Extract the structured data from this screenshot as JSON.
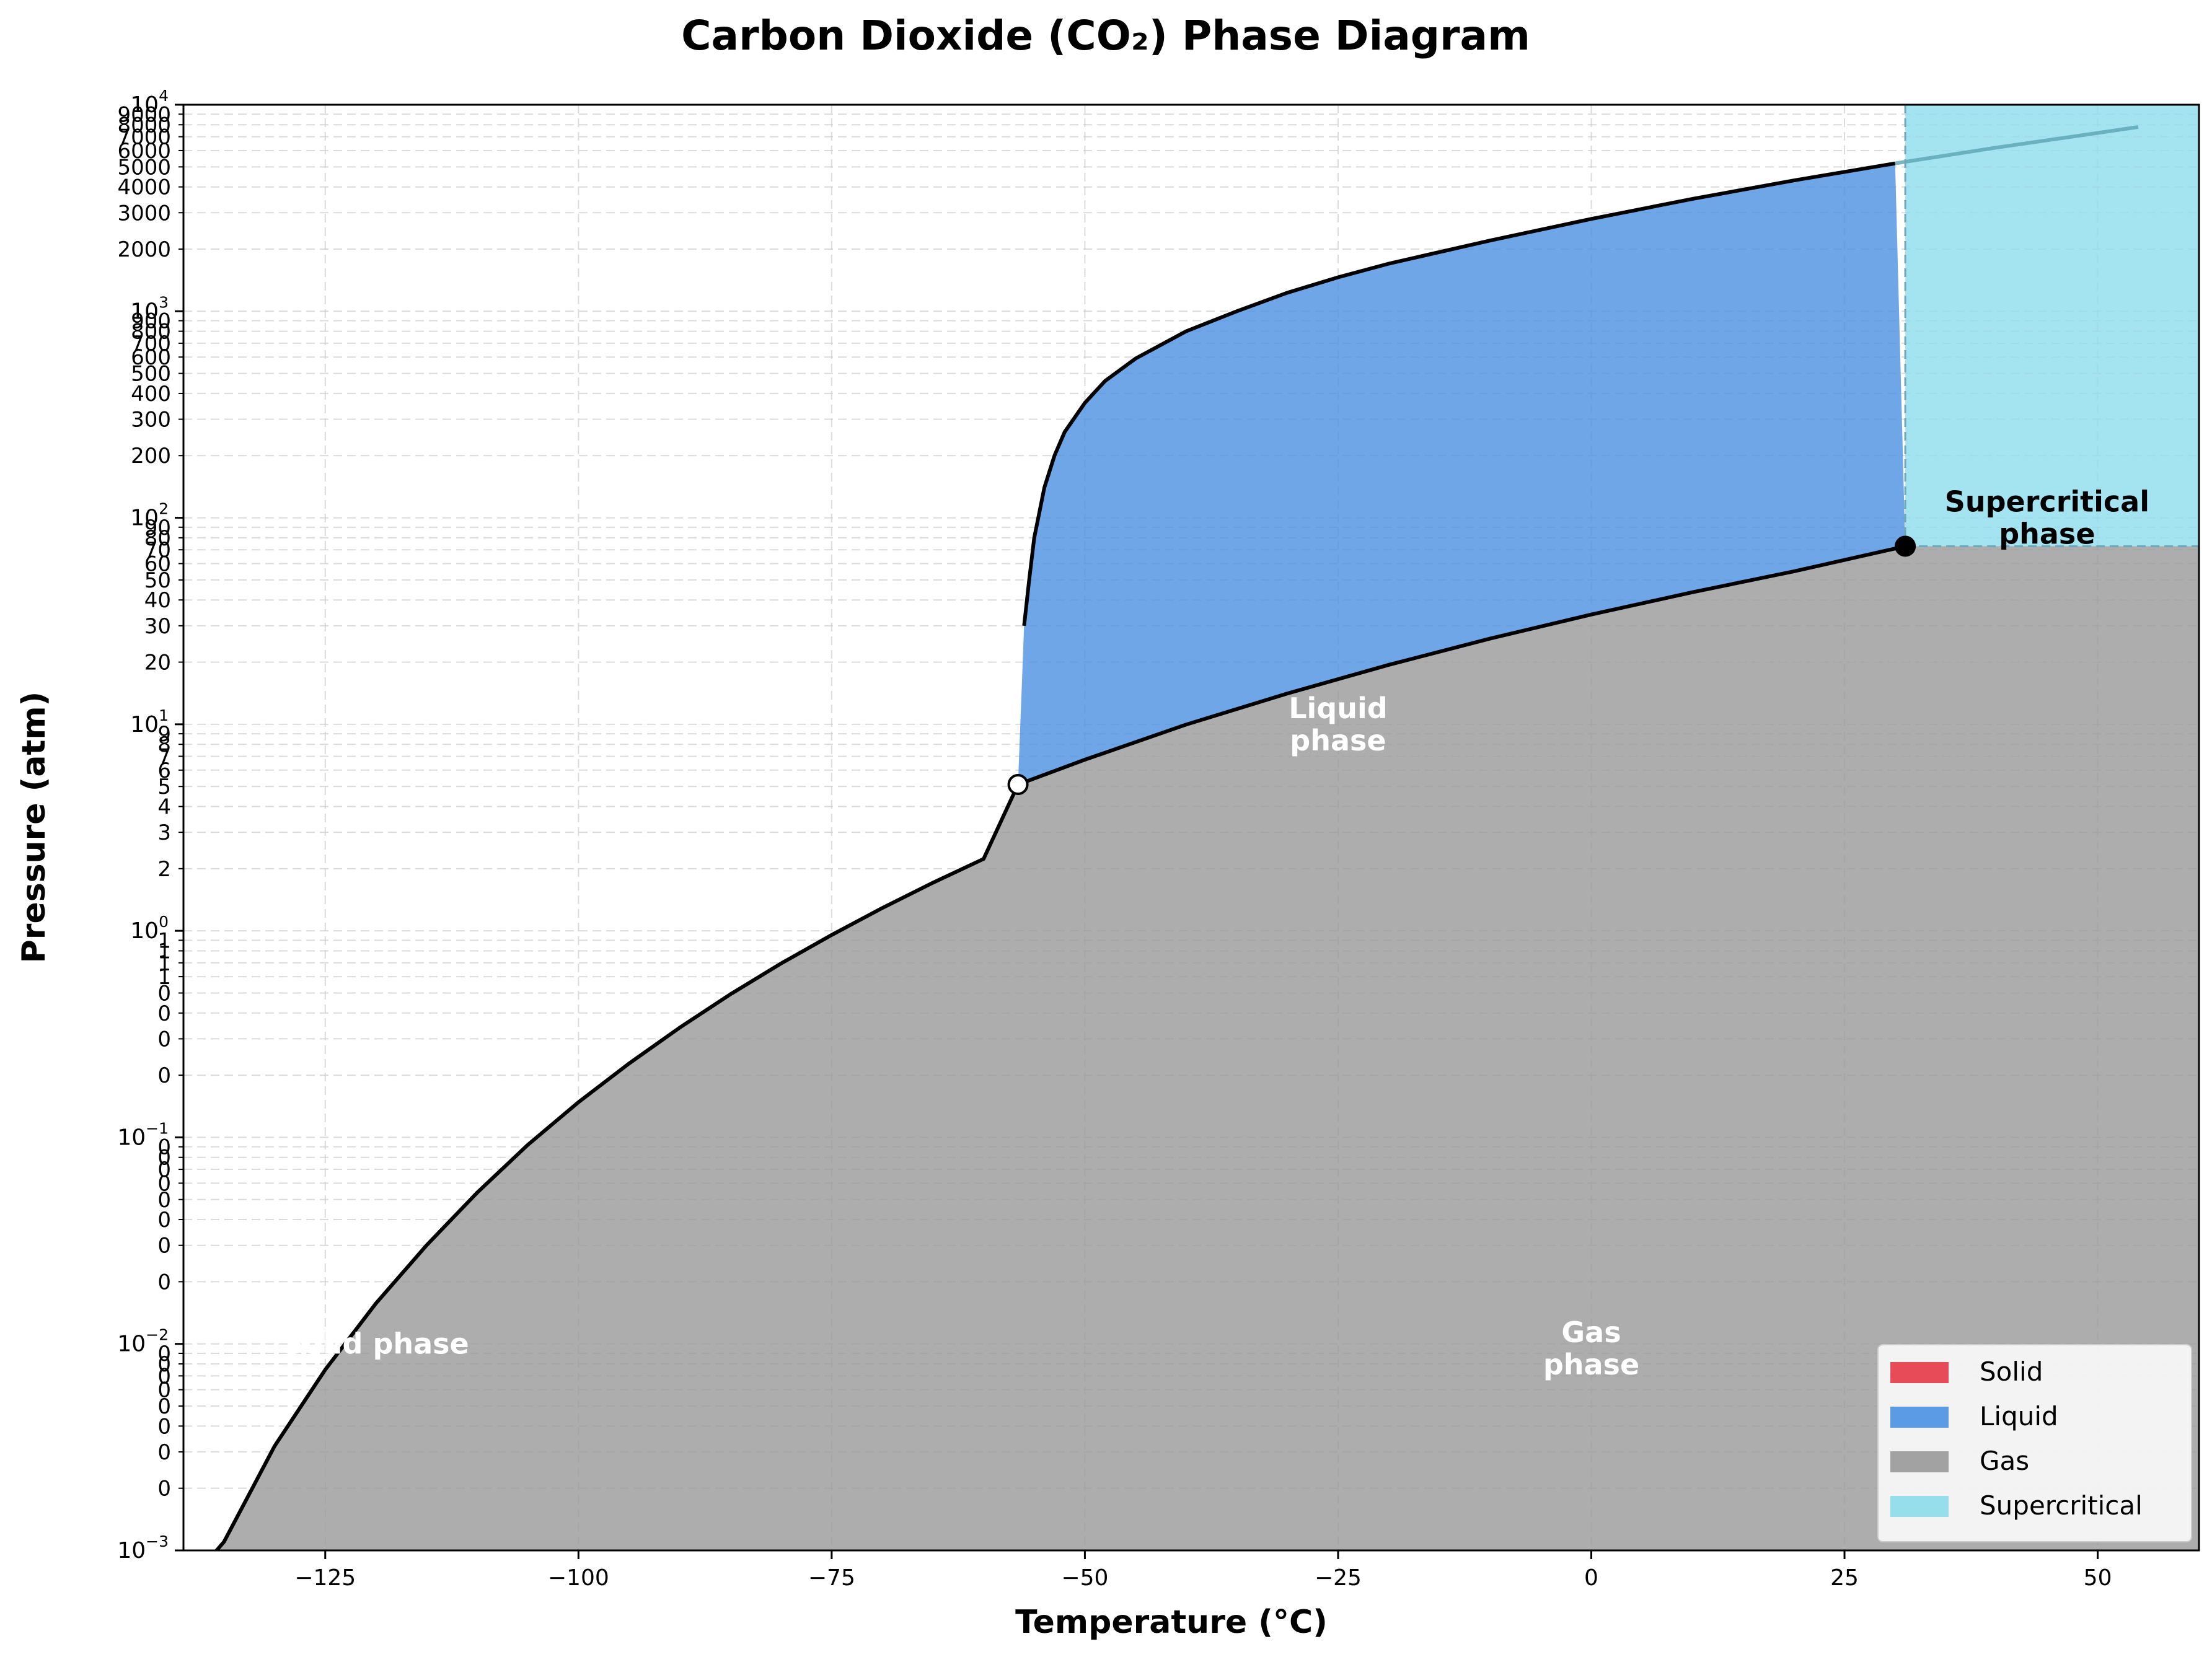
{
  "chart_data": {
    "type": "area",
    "title": "Carbon Dioxide (CO₂) Phase Diagram",
    "xlabel": "Temperature (°C)",
    "ylabel": "Pressure (atm)",
    "xlim": [
      -139,
      60
    ],
    "ylim": [
      0.001,
      10000
    ],
    "yscale": "log",
    "grid": true,
    "legend_position": "bottom-right",
    "x_ticks": [
      -125,
      -100,
      -75,
      -50,
      -25,
      0,
      25,
      50
    ],
    "x_tick_labels": [
      "−125",
      "−100",
      "−75",
      "−50",
      "−25",
      "0",
      "25",
      "50"
    ],
    "y_major_ticks": [
      {
        "value": 0.001,
        "base": "10",
        "exp": "−3"
      },
      {
        "value": 0.01,
        "base": "10",
        "exp": "−2"
      },
      {
        "value": 0.1,
        "base": "10",
        "exp": "−1"
      },
      {
        "value": 1,
        "base": "10",
        "exp": "0"
      },
      {
        "value": 10,
        "base": "10",
        "exp": "1"
      },
      {
        "value": 100,
        "base": "10",
        "exp": "2"
      },
      {
        "value": 1000,
        "base": "10",
        "exp": "3"
      },
      {
        "value": 10000,
        "base": "10",
        "exp": "4"
      }
    ],
    "y_minor_ticks": [
      {
        "value": 0.002,
        "label": "0"
      },
      {
        "value": 0.003,
        "label": "0"
      },
      {
        "value": 0.004,
        "label": "0"
      },
      {
        "value": 0.005,
        "label": "0"
      },
      {
        "value": 0.006,
        "label": "0"
      },
      {
        "value": 0.007,
        "label": "0"
      },
      {
        "value": 0.008,
        "label": "0"
      },
      {
        "value": 0.009,
        "label": "0"
      },
      {
        "value": 0.02,
        "label": "0"
      },
      {
        "value": 0.03,
        "label": "0"
      },
      {
        "value": 0.04,
        "label": "0"
      },
      {
        "value": 0.05,
        "label": "0"
      },
      {
        "value": 0.06,
        "label": "0"
      },
      {
        "value": 0.07,
        "label": "0"
      },
      {
        "value": 0.08,
        "label": "0"
      },
      {
        "value": 0.09,
        "label": "0"
      },
      {
        "value": 0.2,
        "label": "0"
      },
      {
        "value": 0.3,
        "label": "0"
      },
      {
        "value": 0.4,
        "label": "0"
      },
      {
        "value": 0.5,
        "label": "0"
      },
      {
        "value": 0.6,
        "label": "1"
      },
      {
        "value": 0.7,
        "label": "1"
      },
      {
        "value": 0.8,
        "label": "1"
      },
      {
        "value": 0.9,
        "label": "1"
      },
      {
        "value": 2,
        "label": "2"
      },
      {
        "value": 3,
        "label": "3"
      },
      {
        "value": 4,
        "label": "4"
      },
      {
        "value": 5,
        "label": "5"
      },
      {
        "value": 6,
        "label": "6"
      },
      {
        "value": 7,
        "label": "7"
      },
      {
        "value": 8,
        "label": "8"
      },
      {
        "value": 9,
        "label": "9"
      },
      {
        "value": 20,
        "label": "20"
      },
      {
        "value": 30,
        "label": "30"
      },
      {
        "value": 40,
        "label": "40"
      },
      {
        "value": 50,
        "label": "50"
      },
      {
        "value": 60,
        "label": "60"
      },
      {
        "value": 70,
        "label": "70"
      },
      {
        "value": 80,
        "label": "80"
      },
      {
        "value": 90,
        "label": "90"
      },
      {
        "value": 200,
        "label": "200"
      },
      {
        "value": 300,
        "label": "300"
      },
      {
        "value": 400,
        "label": "400"
      },
      {
        "value": 500,
        "label": "500"
      },
      {
        "value": 600,
        "label": "600"
      },
      {
        "value": 700,
        "label": "700"
      },
      {
        "value": 800,
        "label": "800"
      },
      {
        "value": 900,
        "label": "900"
      },
      {
        "value": 2000,
        "label": "2000"
      },
      {
        "value": 3000,
        "label": "3000"
      },
      {
        "value": 4000,
        "label": "4000"
      },
      {
        "value": 5000,
        "label": "5000"
      },
      {
        "value": 6000,
        "label": "6000"
      },
      {
        "value": 7000,
        "label": "7000"
      },
      {
        "value": 8000,
        "label": "8000"
      },
      {
        "value": 9000,
        "label": "9000"
      }
    ],
    "triple_point": {
      "T": -56.6,
      "P": 5.11
    },
    "critical_point": {
      "T": 31.0,
      "P": 72.8
    },
    "sublimation_curve": {
      "T": [
        -139,
        -135,
        -130,
        -125,
        -120,
        -115,
        -110,
        -105,
        -100,
        -95,
        -90,
        -85,
        -80,
        -75,
        -70,
        -65,
        -60,
        -56.6
      ],
      "P": [
        0.00065,
        0.0011,
        0.0032,
        0.0075,
        0.0157,
        0.03,
        0.054,
        0.092,
        0.148,
        0.228,
        0.34,
        0.493,
        0.695,
        0.955,
        1.29,
        1.71,
        2.23,
        5.11
      ]
    },
    "vaporization_curve": {
      "T": [
        -56.6,
        -50,
        -40,
        -30,
        -20,
        -10,
        0,
        10,
        20,
        31.0
      ],
      "P": [
        5.11,
        6.74,
        9.97,
        14.1,
        19.4,
        26.0,
        34.0,
        43.6,
        55.0,
        72.8
      ]
    },
    "melting_curve": {
      "T": [
        -56.0,
        -55.5,
        -55.0,
        -54.0,
        -53.0,
        -52.0,
        -50.0,
        -48.0,
        -45.0,
        -40.0,
        -35.0,
        -30.0,
        -25.0,
        -20.0,
        -10.0,
        0,
        10,
        20,
        30,
        40,
        50,
        54
      ],
      "P": [
        30,
        50,
        80,
        140,
        200,
        260,
        360,
        460,
        590,
        800,
        1000,
        1230,
        1460,
        1700,
        2200,
        2800,
        3500,
        4300,
        5200,
        6200,
        7300,
        7800
      ]
    },
    "series": [
      {
        "name": "Solid",
        "color": "#e63946"
      },
      {
        "name": "Liquid",
        "color": "#4a90e2"
      },
      {
        "name": "Gas",
        "color": "#999999"
      },
      {
        "name": "Supercritical",
        "color": "#8ddcec"
      }
    ],
    "annotations": [
      {
        "text_lines": [
          "Liquid",
          "phase"
        ],
        "T": -25,
        "P": 10,
        "color": "#ffffff"
      },
      {
        "text_lines": [
          "Gas",
          "phase"
        ],
        "T": 0,
        "P": 0.0095,
        "color": "#ffffff"
      },
      {
        "text_lines": [
          "Supercritical",
          "phase"
        ],
        "T": 45,
        "P": 100,
        "color": "#000000"
      },
      {
        "text_lines": [
          "Solid phase"
        ],
        "T": -120,
        "P": 0.01,
        "color": "#ffffff"
      }
    ]
  }
}
